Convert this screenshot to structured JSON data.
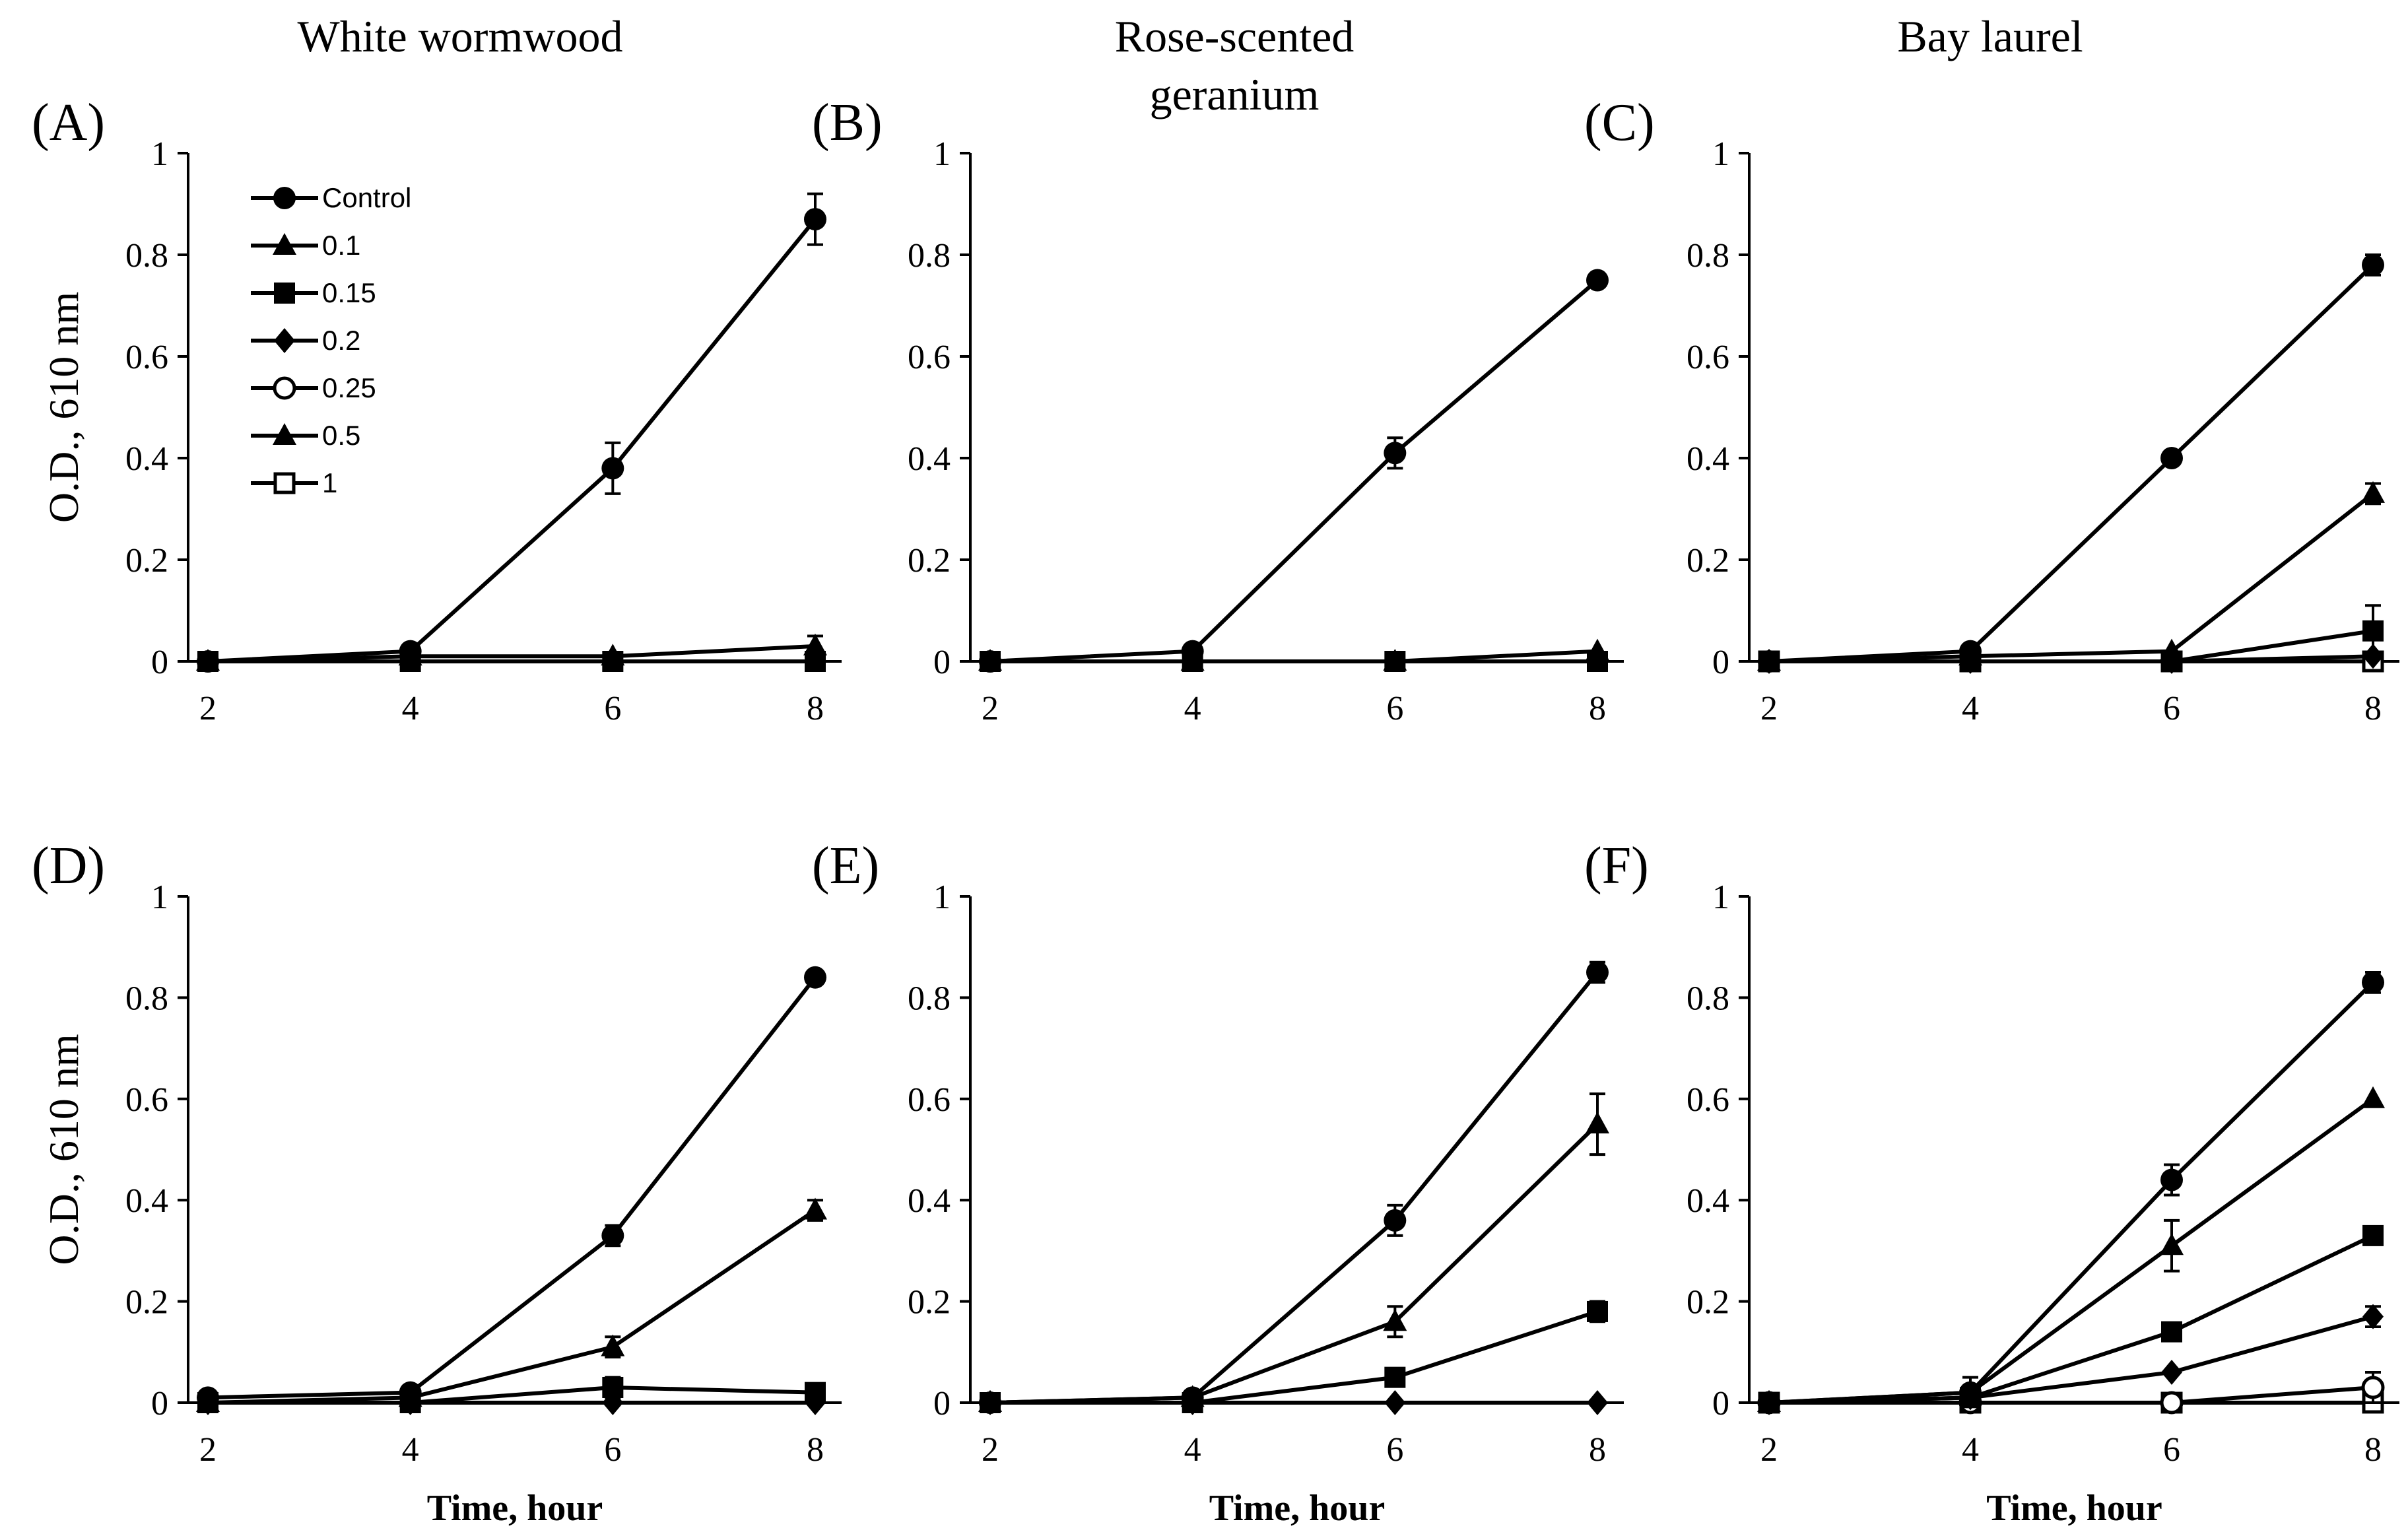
{
  "column_titles": [
    "White wormwood",
    "Rose-scented\ngeranium",
    "Bay laurel"
  ],
  "legend": {
    "entries": [
      {
        "label": "Control",
        "marker": "circle-filled"
      },
      {
        "label": "0.1",
        "marker": "triangle-filled"
      },
      {
        "label": "0.15",
        "marker": "square-filled"
      },
      {
        "label": "0.2",
        "marker": "diamond-filled"
      },
      {
        "label": "0.25",
        "marker": "circle-open"
      },
      {
        "label": "0.5",
        "marker": "triangle-filled"
      },
      {
        "label": "1",
        "marker": "square-open"
      }
    ]
  },
  "chart_data": [
    {
      "type": "line",
      "panel": "(A)",
      "ylabel": "O.D., 610 nm",
      "xlabel": "",
      "x": [
        2,
        4,
        6,
        8
      ],
      "xticks": [
        2,
        4,
        6,
        8
      ],
      "ylim": [
        0,
        1
      ],
      "yticks": [
        0,
        0.2,
        0.4,
        0.6,
        0.8,
        1
      ],
      "ytick_labels": [
        "0",
        "0.2",
        "0.4",
        "0.6",
        "0.8",
        "1"
      ],
      "legend_position": "top-left",
      "series": [
        {
          "name": "Control",
          "marker": "circle-filled",
          "values": [
            0.0,
            0.02,
            0.38,
            0.87
          ],
          "errors": [
            0,
            0,
            0.05,
            0.05
          ]
        },
        {
          "name": "0.1",
          "marker": "triangle-filled",
          "values": [
            0.0,
            0.01,
            0.01,
            0.03
          ],
          "errors": [
            0,
            0,
            0,
            0.02
          ]
        },
        {
          "name": "0.15",
          "marker": "square-filled",
          "values": [
            0.0,
            0.0,
            0.0,
            0.0
          ],
          "errors": [
            0,
            0,
            0,
            0
          ]
        }
      ]
    },
    {
      "type": "line",
      "panel": "(B)",
      "ylabel": "",
      "xlabel": "",
      "x": [
        2,
        4,
        6,
        8
      ],
      "xticks": [
        2,
        4,
        6,
        8
      ],
      "ylim": [
        0,
        1
      ],
      "yticks": [
        0,
        0.2,
        0.4,
        0.6,
        0.8,
        1
      ],
      "ytick_labels": [
        "0",
        "0.2",
        "0.4",
        "0.6",
        "0.8",
        "1"
      ],
      "series": [
        {
          "name": "Control",
          "marker": "circle-filled",
          "values": [
            0.0,
            0.02,
            0.41,
            0.75
          ],
          "errors": [
            0,
            0,
            0.03,
            0
          ]
        },
        {
          "name": "0.1",
          "marker": "triangle-filled",
          "values": [
            0.0,
            0.0,
            0.0,
            0.02
          ],
          "errors": [
            0,
            0,
            0,
            0
          ]
        },
        {
          "name": "0.15",
          "marker": "square-filled",
          "values": [
            0.0,
            0.0,
            0.0,
            0.0
          ],
          "errors": [
            0,
            0,
            0,
            0
          ]
        }
      ]
    },
    {
      "type": "line",
      "panel": "(C)",
      "ylabel": "",
      "xlabel": "",
      "x": [
        2,
        4,
        6,
        8
      ],
      "xticks": [
        2,
        4,
        6,
        8
      ],
      "ylim": [
        0,
        1
      ],
      "yticks": [
        0,
        0.2,
        0.4,
        0.6,
        0.8,
        1
      ],
      "ytick_labels": [
        "0",
        "0.2",
        "0.4",
        "0.6",
        "0.8",
        "1"
      ],
      "series": [
        {
          "name": "Control",
          "marker": "circle-filled",
          "values": [
            0.0,
            0.02,
            0.4,
            0.78
          ],
          "errors": [
            0,
            0,
            0,
            0.02
          ]
        },
        {
          "name": "0.1",
          "marker": "triangle-filled",
          "values": [
            0.0,
            0.01,
            0.02,
            0.33
          ],
          "errors": [
            0,
            0,
            0,
            0.02
          ]
        },
        {
          "name": "0.15",
          "marker": "square-filled",
          "values": [
            0.0,
            0.0,
            0.0,
            0.06
          ],
          "errors": [
            0,
            0,
            0,
            0.05
          ]
        },
        {
          "name": "0.2",
          "marker": "diamond-filled",
          "values": [
            0.0,
            0.0,
            0.0,
            0.01
          ],
          "errors": [
            0,
            0,
            0,
            0
          ]
        },
        {
          "name": "1",
          "marker": "square-open",
          "values": [
            0.0,
            0.0,
            0.0,
            0.0
          ],
          "errors": [
            0,
            0,
            0,
            0
          ]
        }
      ]
    },
    {
      "type": "line",
      "panel": "(D)",
      "ylabel": "O.D., 610 nm",
      "xlabel": "Time, hour",
      "x": [
        2,
        4,
        6,
        8
      ],
      "xticks": [
        2,
        4,
        6,
        8
      ],
      "ylim": [
        0,
        1
      ],
      "yticks": [
        0,
        0.2,
        0.4,
        0.6,
        0.8,
        1
      ],
      "ytick_labels": [
        "0",
        "0.2",
        "0.4",
        "0.6",
        "0.8",
        "1"
      ],
      "series": [
        {
          "name": "Control",
          "marker": "circle-filled",
          "values": [
            0.01,
            0.02,
            0.33,
            0.84
          ],
          "errors": [
            0,
            0,
            0.02,
            0
          ]
        },
        {
          "name": "0.1",
          "marker": "triangle-filled",
          "values": [
            0.0,
            0.01,
            0.11,
            0.38
          ],
          "errors": [
            0,
            0,
            0.02,
            0.02
          ]
        },
        {
          "name": "0.15",
          "marker": "square-filled",
          "values": [
            0.0,
            0.0,
            0.03,
            0.02
          ],
          "errors": [
            0,
            0,
            0.02,
            0
          ]
        },
        {
          "name": "0.2",
          "marker": "diamond-filled",
          "values": [
            0.0,
            0.0,
            0.0,
            0.0
          ],
          "errors": [
            0,
            0,
            0,
            0
          ]
        }
      ]
    },
    {
      "type": "line",
      "panel": "(E)",
      "ylabel": "",
      "xlabel": "Time, hour",
      "x": [
        2,
        4,
        6,
        8
      ],
      "xticks": [
        2,
        4,
        6,
        8
      ],
      "ylim": [
        0,
        1
      ],
      "yticks": [
        0,
        0.2,
        0.4,
        0.6,
        0.8,
        1
      ],
      "ytick_labels": [
        "0",
        "0.2",
        "0.4",
        "0.6",
        "0.8",
        "1"
      ],
      "series": [
        {
          "name": "Control",
          "marker": "circle-filled",
          "values": [
            0.0,
            0.01,
            0.36,
            0.85
          ],
          "errors": [
            0,
            0,
            0.03,
            0.02
          ]
        },
        {
          "name": "0.1",
          "marker": "triangle-filled",
          "values": [
            0.0,
            0.01,
            0.16,
            0.55
          ],
          "errors": [
            0,
            0,
            0.03,
            0.06
          ]
        },
        {
          "name": "0.15",
          "marker": "square-filled",
          "values": [
            0.0,
            0.0,
            0.05,
            0.18
          ],
          "errors": [
            0,
            0,
            0,
            0.02
          ]
        },
        {
          "name": "0.2",
          "marker": "diamond-filled",
          "values": [
            0.0,
            0.0,
            0.0,
            0.0
          ],
          "errors": [
            0,
            0,
            0,
            0
          ]
        }
      ]
    },
    {
      "type": "line",
      "panel": "(F)",
      "ylabel": "",
      "xlabel": "Time, hour",
      "x": [
        2,
        4,
        6,
        8
      ],
      "xticks": [
        2,
        4,
        6,
        8
      ],
      "ylim": [
        0,
        1
      ],
      "yticks": [
        0,
        0.2,
        0.4,
        0.6,
        0.8,
        1
      ],
      "ytick_labels": [
        "0",
        "0.2",
        "0.4",
        "0.6",
        "0.8",
        "1"
      ],
      "series": [
        {
          "name": "Control",
          "marker": "circle-filled",
          "values": [
            0.0,
            0.02,
            0.44,
            0.83
          ],
          "errors": [
            0,
            0,
            0.03,
            0.02
          ]
        },
        {
          "name": "0.1",
          "marker": "triangle-filled",
          "values": [
            0.0,
            0.02,
            0.31,
            0.6
          ],
          "errors": [
            0,
            0.03,
            0.05,
            0
          ]
        },
        {
          "name": "0.15",
          "marker": "square-filled",
          "values": [
            0.0,
            0.01,
            0.14,
            0.33
          ],
          "errors": [
            0,
            0,
            0,
            0
          ]
        },
        {
          "name": "0.2",
          "marker": "diamond-filled",
          "values": [
            0.0,
            0.01,
            0.06,
            0.17
          ],
          "errors": [
            0,
            0,
            0,
            0.02
          ]
        },
        {
          "name": "0.25",
          "marker": "circle-open",
          "values": [
            0.0,
            0.0,
            0.0,
            0.03
          ],
          "errors": [
            0,
            0,
            0,
            0.03
          ]
        },
        {
          "name": "1",
          "marker": "square-open",
          "values": [
            0.0,
            0.0,
            0.0,
            0.0
          ],
          "errors": [
            0,
            0,
            0,
            0
          ]
        }
      ]
    }
  ]
}
